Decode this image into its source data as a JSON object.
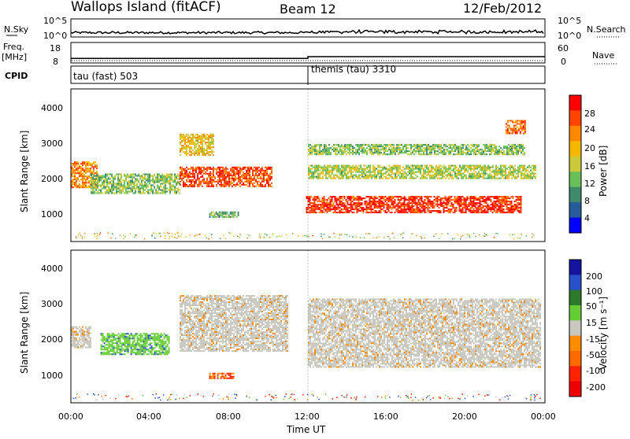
{
  "header": {
    "station": "Wallops Island (fitACF)",
    "beam": "Beam 12",
    "date": "12/Feb/2012"
  },
  "top_panels": {
    "nsky_label": "N.Sky",
    "nsky_ticks": [
      "10^5",
      "10^0"
    ],
    "nsky_right_ticks": [
      "10^5",
      "10^0"
    ],
    "nsearch_label": "N.Search",
    "freq_label": "Freq.",
    "freq_unit": "[MHz]",
    "freq_ticks": [
      "18",
      "8"
    ],
    "nave_ticks": [
      "60",
      "0"
    ],
    "nave_label": "Nave",
    "cpid_label": "CPID",
    "cpid_segments": [
      {
        "label": "tau (fast) 503",
        "start_hour": 0
      },
      {
        "label": "themis (tau) 3310",
        "start_hour": 12
      }
    ],
    "freq_mhz_before_12": 10.2,
    "freq_mhz_after_12": 11.1
  },
  "power_panel": {
    "ylabel": "Slant Range [km]",
    "yticks": [
      "4000",
      "3000",
      "2000",
      "1000"
    ],
    "colorbar_label": "Power [dB]",
    "colorbar_ticks": [
      "28",
      "24",
      "20",
      "16",
      "12",
      "8",
      "4"
    ],
    "colorbar_colors": [
      "#ff0000",
      "#ff4400",
      "#ff8800",
      "#f5b800",
      "#c9c93a",
      "#6abf5a",
      "#3e8a6a",
      "#275c9a",
      "#0000ff"
    ]
  },
  "velocity_panel": {
    "ylabel": "Slant Range [km]",
    "yticks": [
      "4000",
      "3000",
      "2000",
      "1000"
    ],
    "colorbar_label": "Velocity [m s⁻¹]",
    "colorbar_ticks": [
      "200",
      "100",
      "50",
      "15",
      "-15",
      "-50",
      "-100",
      "-200"
    ],
    "colorbar_colors": [
      "#1414a0",
      "#2850c8",
      "#2d7a2d",
      "#66cc33",
      "#c8c8c0",
      "#ff8c00",
      "#ff6a00",
      "#ff2200",
      "#ee0000"
    ]
  },
  "xaxis": {
    "ticks": [
      "00:00",
      "04:00",
      "08:00",
      "12:00",
      "16:00",
      "20:00",
      "00:00"
    ],
    "label": "Time UT"
  },
  "chart_data": {
    "type": "heatmap",
    "x_unit": "hours UT",
    "xlim": [
      0,
      24
    ],
    "ylim_km": [
      180,
      4600
    ],
    "power_echo_bands": [
      {
        "start_hour": 0.0,
        "end_hour": 1.3,
        "range_km": [
          1750,
          2500
        ],
        "power_db": 22
      },
      {
        "start_hour": 1.0,
        "end_hour": 5.5,
        "range_km": [
          1600,
          2150
        ],
        "power_db": 12
      },
      {
        "start_hour": 5.5,
        "end_hour": 10.2,
        "range_km": [
          1800,
          2350
        ],
        "power_db": 26
      },
      {
        "start_hour": 5.5,
        "end_hour": 7.2,
        "range_km": [
          2700,
          3300
        ],
        "power_db": 18
      },
      {
        "start_hour": 7.0,
        "end_hour": 8.5,
        "range_km": [
          900,
          1050
        ],
        "power_db": 10
      },
      {
        "start_hour": 11.9,
        "end_hour": 22.8,
        "range_km": [
          1000,
          1500
        ],
        "power_db": 28
      },
      {
        "start_hour": 12.0,
        "end_hour": 23.5,
        "range_km": [
          2000,
          2400
        ],
        "power_db": 14
      },
      {
        "start_hour": 12.0,
        "end_hour": 23.0,
        "range_km": [
          2700,
          3000
        ],
        "power_db": 12
      },
      {
        "start_hour": 22.0,
        "end_hour": 23.0,
        "range_km": [
          3300,
          3700
        ],
        "power_db": 24
      }
    ],
    "velocity_echo_bands": [
      {
        "start_hour": 0.0,
        "end_hour": 1.0,
        "range_km": [
          1800,
          2400
        ],
        "velocity_ms": 0
      },
      {
        "start_hour": 1.5,
        "end_hour": 5.0,
        "range_km": [
          1600,
          2200
        ],
        "velocity_ms": 60
      },
      {
        "start_hour": 5.5,
        "end_hour": 11.0,
        "range_km": [
          1700,
          3300
        ],
        "velocity_ms": 0
      },
      {
        "start_hour": 7.0,
        "end_hour": 8.2,
        "range_km": [
          900,
          1050
        ],
        "velocity_ms": -60
      },
      {
        "start_hour": 12.0,
        "end_hour": 23.8,
        "range_km": [
          1200,
          3200
        ],
        "velocity_ms": 0
      }
    ]
  }
}
